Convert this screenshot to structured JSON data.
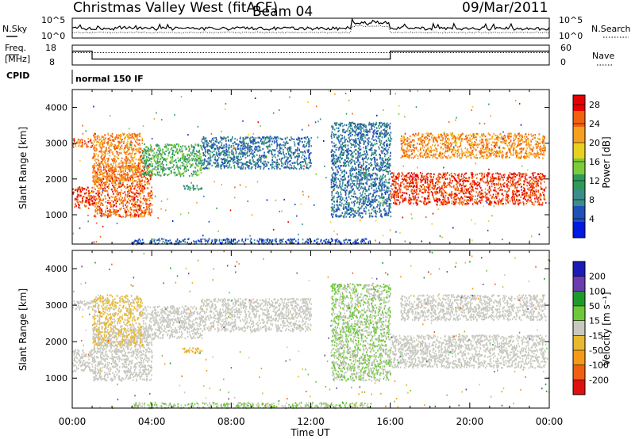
{
  "header": {
    "station": "Christmas Valley West (fitACF)",
    "beam": "Beam 04",
    "date": "09/Mar/2011"
  },
  "top_panels": {
    "nsky_label": "N.Sky",
    "nsearch_label": "N.Search",
    "freq_label_1": "Freq.",
    "freq_label_2": "[MHz]",
    "nave_label": "Nave",
    "cpid_label": "CPID",
    "cpid_value": "normal 150 IF",
    "noise_left_ticks": [
      "10^5",
      "10^0"
    ],
    "noise_right_ticks": [
      "10^5",
      "10^0"
    ],
    "freq_ticks": [
      "18",
      "8"
    ],
    "nave_ticks": [
      "60",
      "0"
    ]
  },
  "panels": {
    "power_ylabel": "Slant Range [km]",
    "velocity_ylabel": "Slant Range [km]",
    "power_cbar_label": "Power [dB]",
    "velocity_cbar_label": "Velocity [m s⁻¹]",
    "xlabel": "Time UT"
  },
  "colors": {
    "power_scale": [
      "#0018e0",
      "#2050b8",
      "#3c8c8c",
      "#2e9a5a",
      "#7ccc3a",
      "#e8d020",
      "#f7a020",
      "#f26010",
      "#e60000"
    ],
    "velocity_scale": [
      "#1a1ab8",
      "#6a3cb0",
      "#1f9a2a",
      "#6ec83a",
      "#c8c8c0",
      "#e8b830",
      "#f59a18",
      "#f06010",
      "#e01010"
    ]
  },
  "chart_data": [
    {
      "type": "heatmap",
      "name": "Power",
      "xlabel": "Time UT",
      "ylabel": "Slant Range [km]",
      "x_ticks": [
        "00:00",
        "04:00",
        "08:00",
        "12:00",
        "16:00",
        "20:00",
        "00:00"
      ],
      "x_range_hours": [
        0,
        24
      ],
      "y_ticks": [
        1000,
        2000,
        3000,
        4000
      ],
      "y_range_km": [
        180,
        4500
      ],
      "colorbar": {
        "label": "Power [dB]",
        "ticks": [
          4,
          8,
          12,
          16,
          20,
          24,
          28
        ],
        "range": [
          0,
          30
        ]
      },
      "echo_bands": [
        {
          "t": [
            0.0,
            1.0
          ],
          "range_km": [
            1200,
            1800
          ],
          "value": 28
        },
        {
          "t": [
            0.0,
            1.0
          ],
          "range_km": [
            2900,
            3150
          ],
          "value": 26
        },
        {
          "t": [
            1.0,
            4.0
          ],
          "range_km": [
            950,
            2400
          ],
          "value": 26
        },
        {
          "t": [
            1.0,
            3.5
          ],
          "range_km": [
            1900,
            3300
          ],
          "value": 24
        },
        {
          "t": [
            3.5,
            6.5
          ],
          "range_km": [
            2100,
            3000
          ],
          "value": 12
        },
        {
          "t": [
            5.5,
            6.5
          ],
          "range_km": [
            1700,
            1850
          ],
          "value": 10
        },
        {
          "t": [
            6.5,
            12.0
          ],
          "range_km": [
            2300,
            3200
          ],
          "value": 6
        },
        {
          "t": [
            13.0,
            16.0
          ],
          "range_km": [
            950,
            3600
          ],
          "value": 6
        },
        {
          "t": [
            16.0,
            23.8
          ],
          "range_km": [
            1300,
            2200
          ],
          "value": 28
        },
        {
          "t": [
            16.5,
            23.8
          ],
          "range_km": [
            2600,
            3300
          ],
          "value": 24
        },
        {
          "t": [
            3.0,
            15.0
          ],
          "range_km": [
            200,
            350
          ],
          "value": 4
        }
      ]
    },
    {
      "type": "heatmap",
      "name": "Velocity",
      "xlabel": "Time UT",
      "ylabel": "Slant Range [km]",
      "x_ticks": [
        "00:00",
        "04:00",
        "08:00",
        "12:00",
        "16:00",
        "20:00",
        "00:00"
      ],
      "x_range_hours": [
        0,
        24
      ],
      "y_ticks": [
        1000,
        2000,
        3000,
        4000
      ],
      "y_range_km": [
        180,
        4500
      ],
      "colorbar": {
        "label": "Velocity [m s⁻¹]",
        "ticks": [
          200,
          100,
          50,
          15,
          -15,
          -50,
          -100,
          -200
        ],
        "range": [
          -250,
          250
        ]
      },
      "echo_bands": [
        {
          "t": [
            0.0,
            1.0
          ],
          "range_km": [
            1200,
            1800
          ],
          "value": 0
        },
        {
          "t": [
            0.0,
            1.0
          ],
          "range_km": [
            2900,
            3150
          ],
          "value": 0
        },
        {
          "t": [
            1.0,
            4.0
          ],
          "range_km": [
            950,
            2400
          ],
          "value": 0
        },
        {
          "t": [
            1.0,
            3.5
          ],
          "range_km": [
            1900,
            3300
          ],
          "value": -40
        },
        {
          "t": [
            3.5,
            6.5
          ],
          "range_km": [
            2100,
            3000
          ],
          "value": 0
        },
        {
          "t": [
            5.5,
            6.5
          ],
          "range_km": [
            1700,
            1850
          ],
          "value": -80
        },
        {
          "t": [
            6.5,
            12.0
          ],
          "range_km": [
            2300,
            3200
          ],
          "value": 0
        },
        {
          "t": [
            13.0,
            16.0
          ],
          "range_km": [
            950,
            3600
          ],
          "value": 30
        },
        {
          "t": [
            16.0,
            23.8
          ],
          "range_km": [
            1300,
            2200
          ],
          "value": 0
        },
        {
          "t": [
            16.5,
            23.8
          ],
          "range_km": [
            2600,
            3300
          ],
          "value": 0
        },
        {
          "t": [
            3.0,
            15.0
          ],
          "range_km": [
            200,
            350
          ],
          "value": 30
        }
      ]
    }
  ],
  "noise_frequency": {
    "freq_mhz_segments": [
      {
        "t": [
          0,
          1
        ],
        "value": 15
      },
      {
        "t": [
          1,
          16
        ],
        "value": 11
      },
      {
        "t": [
          16,
          24
        ],
        "value": 15
      }
    ],
    "freq_range": [
      8,
      18
    ],
    "nave_range": [
      0,
      60
    ],
    "nave_value": 42
  }
}
